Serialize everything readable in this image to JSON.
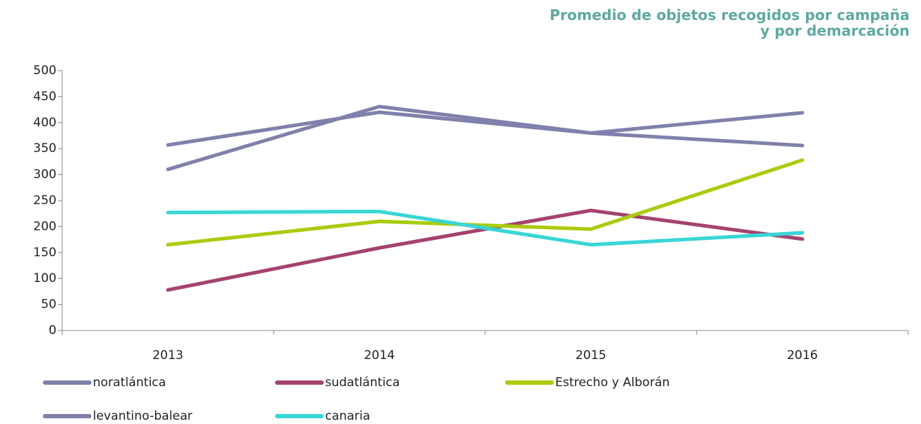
{
  "chart_data": {
    "type": "line",
    "title": "Promedio de objetos recogidos por campaña\ny por demarcación",
    "categories": [
      "2013",
      "2014",
      "2015",
      "2016"
    ],
    "series": [
      {
        "name": "noratlántica",
        "color": "#8080ac",
        "values": [
          357,
          420,
          380,
          356
        ]
      },
      {
        "name": "sudatlántica",
        "color": "#a4436f",
        "values": [
          78,
          159,
          231,
          176
        ]
      },
      {
        "name": "Estrecho y Alborán",
        "color": "#a8cc0c",
        "values": [
          165,
          210,
          195,
          328
        ]
      },
      {
        "name": "levantino-balear",
        "color": "#8080ac",
        "values": [
          310,
          431,
          380,
          419
        ]
      },
      {
        "name": "canaria",
        "color": "#38d6d6",
        "values": [
          227,
          229,
          165,
          188
        ]
      }
    ],
    "ylim": [
      0,
      500
    ],
    "yticks": [
      0,
      50,
      100,
      150,
      200,
      250,
      300,
      350,
      400,
      450,
      500
    ]
  }
}
